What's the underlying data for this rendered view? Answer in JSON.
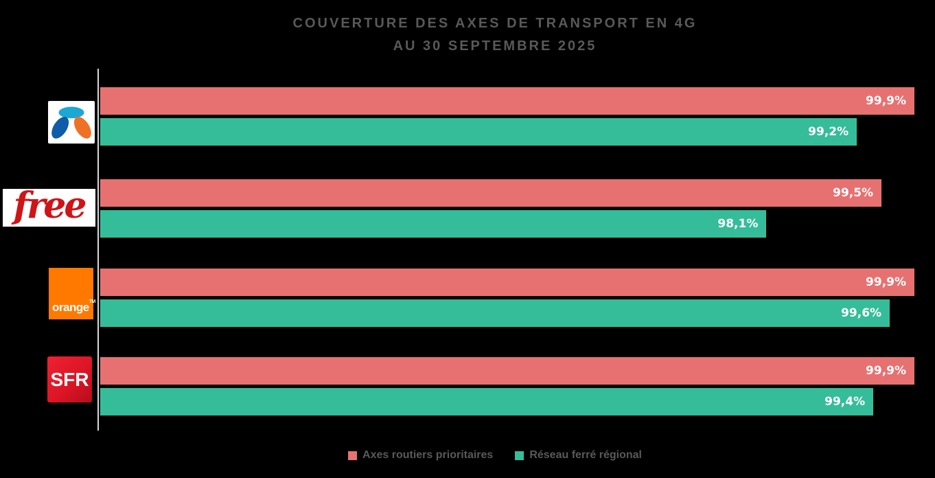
{
  "title": {
    "line1": "COUVERTURE DES AXES DE TRANSPORT EN 4G",
    "line2": "AU 30 SEPTEMBRE 2025"
  },
  "colors": {
    "background": "#000000",
    "title_text": "#595959",
    "axis_line": "#DADADA",
    "roads_bar": "#E77171",
    "rail_bar": "#35BD99",
    "bouygues_cyan": "#1BA8D5",
    "bouygues_blue": "#0F5CA8",
    "bouygues_orange": "#EE7226",
    "free_red": "#D01317",
    "orange_brand": "#FF7900",
    "sfr_red": "#DD1526"
  },
  "logos": {
    "free_text": "free",
    "orange_text": "orange",
    "orange_tm": "TM",
    "sfr_text": "SFR"
  },
  "legend": {
    "items": [
      {
        "label": "Axes routiers prioritaires",
        "color": "#E77171"
      },
      {
        "label": "Réseau ferré régional",
        "color": "#35BD99"
      }
    ]
  },
  "chart_data": {
    "type": "bar",
    "orientation": "horizontal",
    "title": "Couverture des axes de transport en 4G au 30 septembre 2025",
    "categories": [
      "Bouygues Telecom",
      "Free",
      "Orange",
      "SFR"
    ],
    "series": [
      {
        "name": "Axes routiers prioritaires",
        "color": "#E77171",
        "values": [
          99.9,
          99.5,
          99.9,
          99.9
        ],
        "labels": [
          "99,9%",
          "99,5%",
          "99,9%",
          "99,9%"
        ]
      },
      {
        "name": "Réseau ferré régional",
        "color": "#35BD99",
        "values": [
          99.2,
          98.1,
          99.6,
          99.4
        ],
        "labels": [
          "99,2%",
          "98,1%",
          "99,6%",
          "99,4%"
        ]
      }
    ],
    "xlim": [
      90,
      100
    ],
    "value_suffix": "%",
    "grid": false,
    "legend_position": "bottom"
  }
}
